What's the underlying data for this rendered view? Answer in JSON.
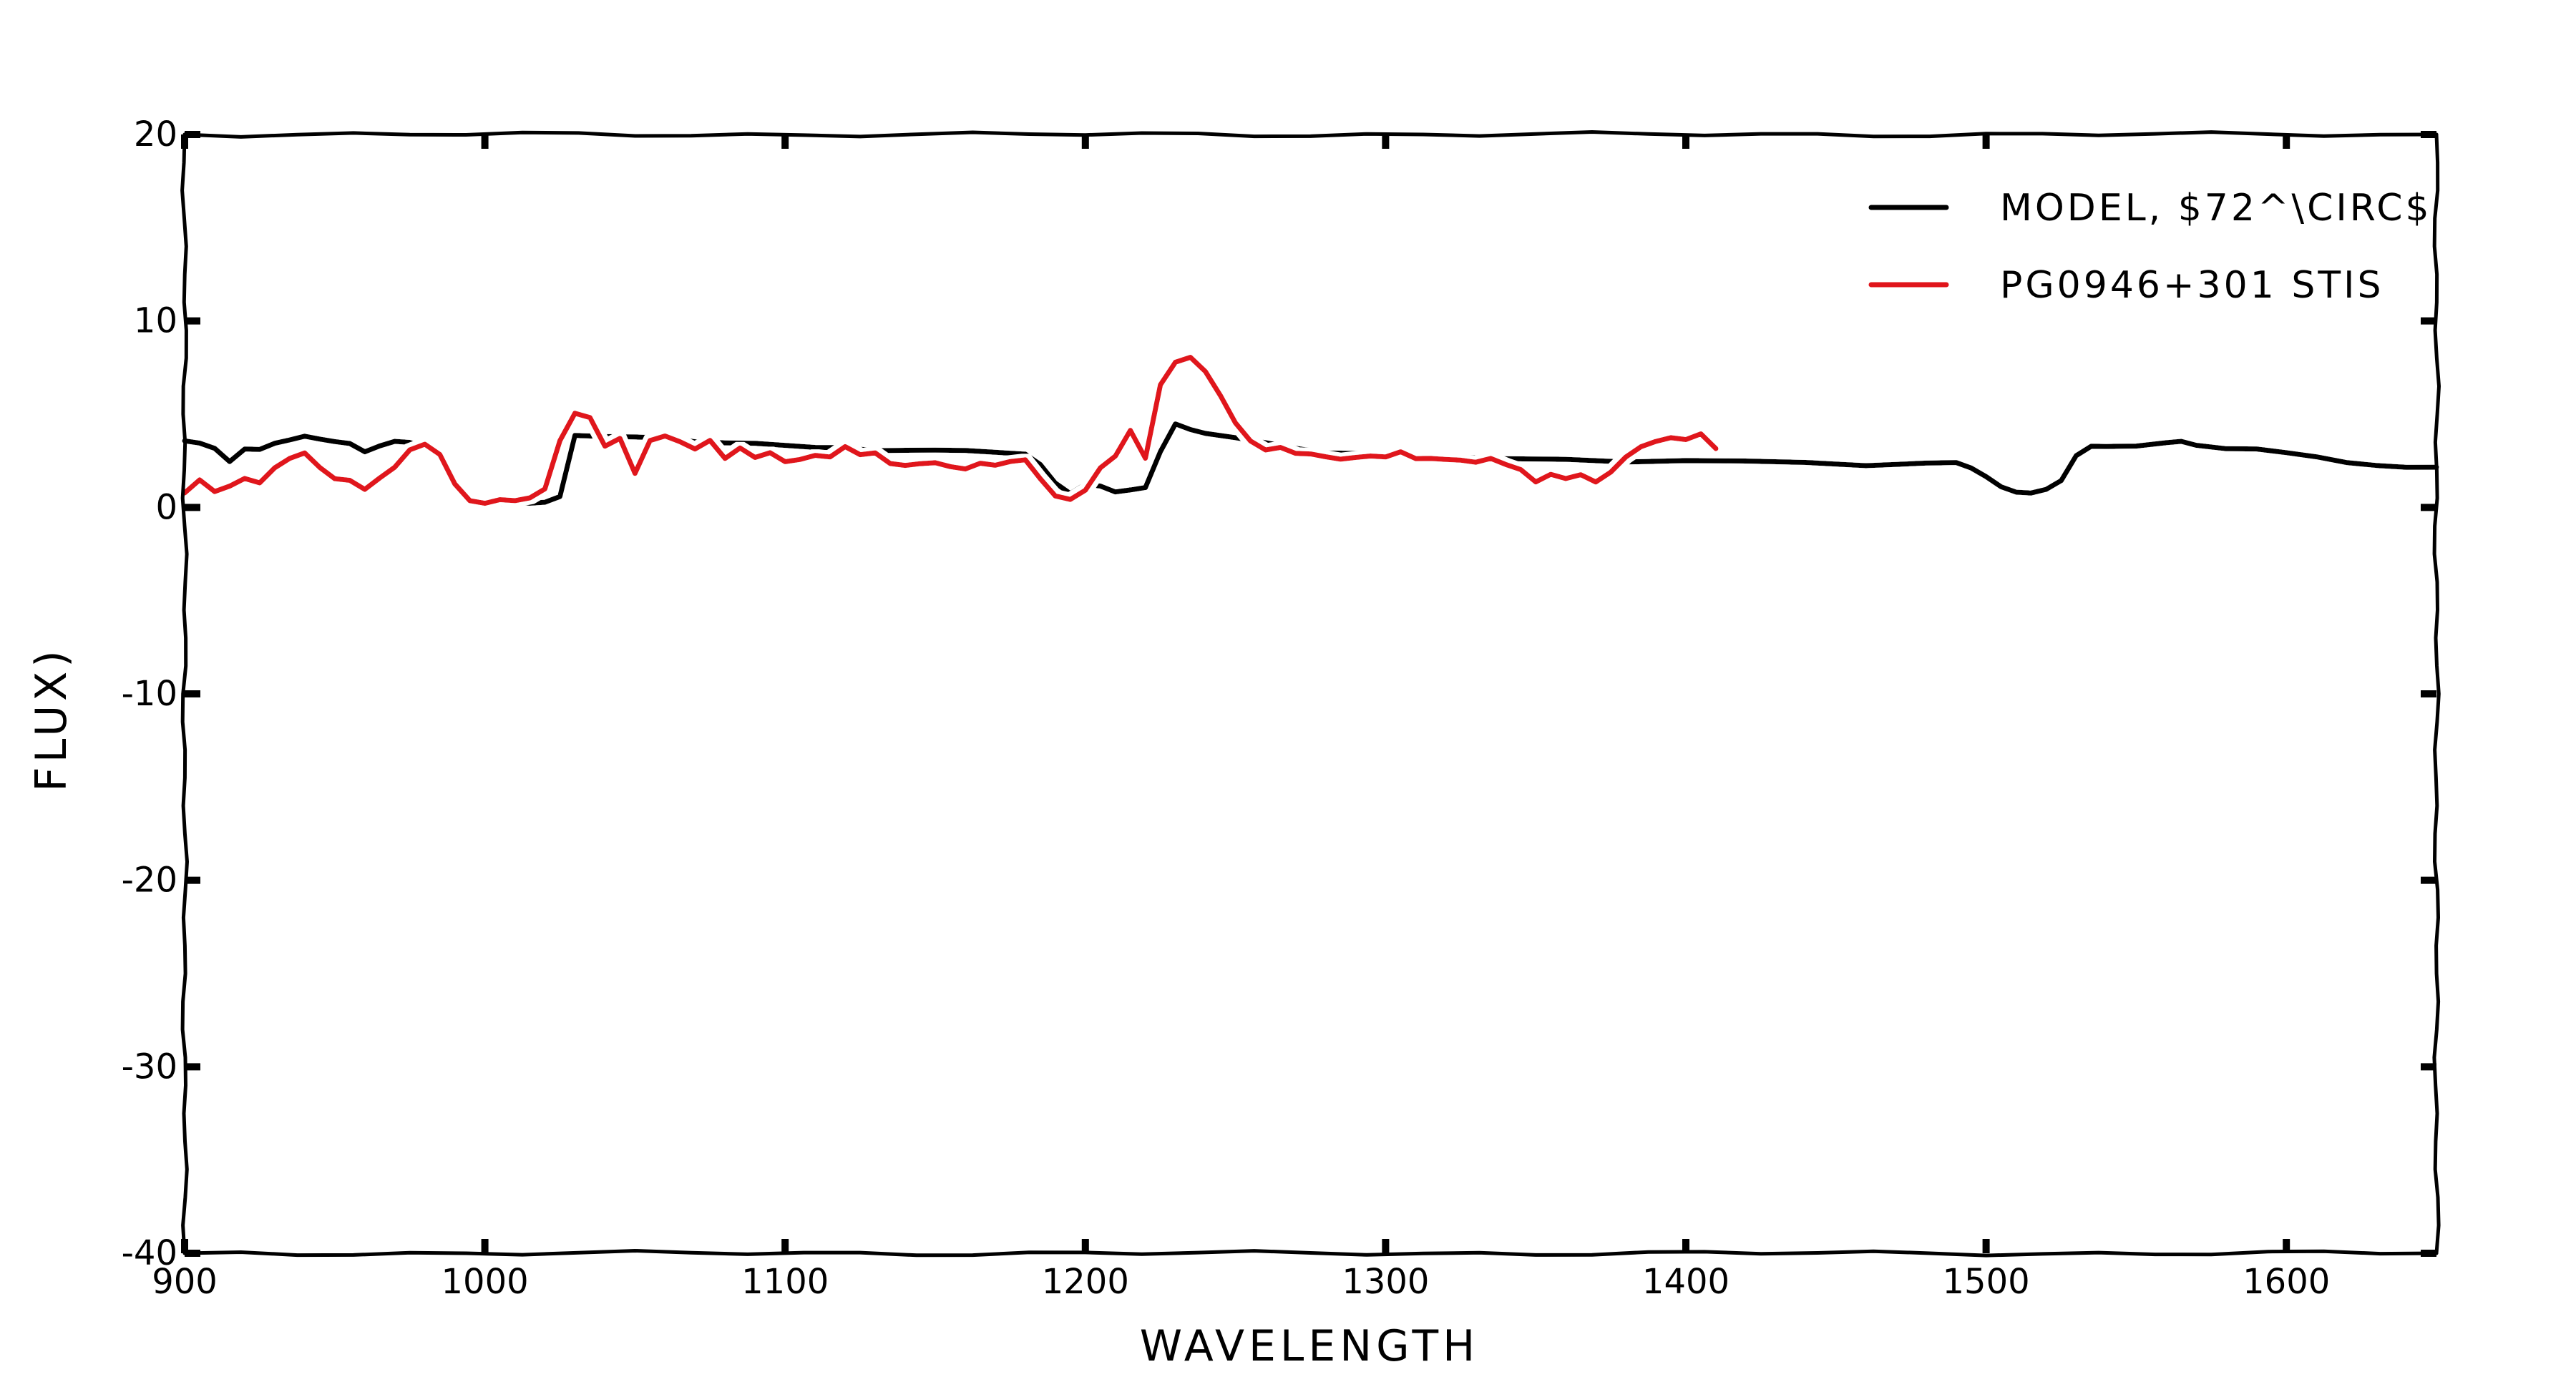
{
  "chart_data": {
    "type": "line",
    "title": "",
    "xlabel": "WAVELENGTH",
    "ylabel": "FLUX)",
    "xlim": [
      900,
      1650
    ],
    "ylim": [
      -40,
      20
    ],
    "xticks": [
      900,
      1000,
      1100,
      1200,
      1300,
      1400,
      1500,
      1600
    ],
    "xtick_labels": [
      "900",
      "1000",
      "1100",
      "1200",
      "1300",
      "1400",
      "1500",
      "1600"
    ],
    "yticks": [
      -40,
      -30,
      -20,
      -10,
      0,
      10,
      20
    ],
    "ytick_labels": [
      "-40",
      "-30",
      "-20",
      "-10",
      "0",
      "10",
      "20"
    ],
    "grid": false,
    "legend_position": "top-right",
    "style": "xkcd",
    "series": [
      {
        "name": "MODEL, $72^\\CIRC$",
        "color": "#000000",
        "x": [
          900,
          905,
          910,
          915,
          920,
          925,
          930,
          935,
          940,
          945,
          950,
          955,
          960,
          965,
          970,
          975,
          980,
          985,
          990,
          995,
          1000,
          1005,
          1010,
          1015,
          1020,
          1025,
          1030,
          1040,
          1050,
          1060,
          1070,
          1080,
          1090,
          1100,
          1110,
          1120,
          1130,
          1140,
          1150,
          1160,
          1170,
          1180,
          1185,
          1190,
          1195,
          1200,
          1205,
          1210,
          1215,
          1220,
          1225,
          1230,
          1235,
          1240,
          1250,
          1260,
          1270,
          1280,
          1290,
          1300,
          1320,
          1340,
          1360,
          1380,
          1400,
          1420,
          1440,
          1460,
          1480,
          1490,
          1495,
          1500,
          1505,
          1510,
          1515,
          1520,
          1525,
          1530,
          1535,
          1540,
          1550,
          1560,
          1565,
          1570,
          1580,
          1590,
          1600,
          1610,
          1620,
          1630,
          1640,
          1650
        ],
        "y": [
          3.6,
          3.4,
          3.1,
          2.5,
          3.2,
          3.1,
          3.4,
          3.6,
          3.8,
          3.7,
          3.6,
          3.4,
          2.9,
          3.3,
          3.6,
          3.5,
          3.2,
          2.5,
          1.3,
          0.4,
          0.2,
          0.2,
          0.2,
          0.2,
          0.3,
          0.6,
          3.9,
          3.8,
          3.7,
          3.7,
          3.6,
          3.5,
          3.4,
          3.3,
          3.2,
          3.2,
          3.1,
          3.1,
          3.0,
          3.0,
          3.0,
          2.9,
          2.3,
          1.3,
          0.7,
          1.2,
          1.2,
          0.9,
          0.9,
          1.0,
          3.0,
          4.5,
          4.2,
          4.0,
          3.7,
          3.4,
          3.2,
          3.0,
          2.9,
          2.8,
          2.7,
          2.6,
          2.6,
          2.5,
          2.5,
          2.4,
          2.4,
          2.3,
          2.4,
          2.4,
          2.1,
          1.6,
          1.1,
          0.9,
          0.8,
          0.9,
          1.4,
          2.8,
          3.3,
          3.3,
          3.3,
          3.4,
          3.5,
          3.4,
          3.2,
          3.1,
          2.9,
          2.7,
          2.4,
          2.3,
          2.2,
          2.1
        ]
      },
      {
        "name": "PG0946+301 STIS",
        "color": "#e0151b",
        "x": [
          900,
          905,
          910,
          915,
          920,
          925,
          930,
          935,
          940,
          945,
          950,
          955,
          960,
          965,
          970,
          975,
          980,
          985,
          990,
          995,
          1000,
          1005,
          1010,
          1015,
          1020,
          1025,
          1030,
          1035,
          1040,
          1045,
          1050,
          1055,
          1060,
          1065,
          1070,
          1075,
          1080,
          1085,
          1090,
          1095,
          1100,
          1105,
          1110,
          1115,
          1120,
          1125,
          1130,
          1135,
          1140,
          1145,
          1150,
          1155,
          1160,
          1165,
          1170,
          1175,
          1180,
          1185,
          1190,
          1195,
          1200,
          1205,
          1210,
          1215,
          1220,
          1225,
          1230,
          1235,
          1240,
          1245,
          1250,
          1255,
          1260,
          1265,
          1270,
          1275,
          1280,
          1285,
          1290,
          1295,
          1300,
          1305,
          1310,
          1315,
          1320,
          1325,
          1330,
          1335,
          1340,
          1345,
          1350,
          1355,
          1360,
          1365,
          1370,
          1375,
          1380,
          1385,
          1390,
          1395,
          1400,
          1405,
          1410
        ],
        "y": [
          0.8,
          1.4,
          0.8,
          1.2,
          1.6,
          1.3,
          2.1,
          2.6,
          2.9,
          2.2,
          1.6,
          1.4,
          0.9,
          1.6,
          2.2,
          3.1,
          3.4,
          2.8,
          1.2,
          0.4,
          0.3,
          0.4,
          0.3,
          0.5,
          1.0,
          3.6,
          5.1,
          4.8,
          3.2,
          3.7,
          1.9,
          3.6,
          3.8,
          3.5,
          3.1,
          3.6,
          2.7,
          3.2,
          2.6,
          2.9,
          2.5,
          2.6,
          2.8,
          2.7,
          3.2,
          2.8,
          3.0,
          2.4,
          2.2,
          2.3,
          2.4,
          2.2,
          2.1,
          2.4,
          2.2,
          2.4,
          2.6,
          1.6,
          0.6,
          0.4,
          0.9,
          2.1,
          2.8,
          4.2,
          2.6,
          6.5,
          7.8,
          8.1,
          7.3,
          6.0,
          4.5,
          3.5,
          3.1,
          3.3,
          2.9,
          2.8,
          2.7,
          2.6,
          2.7,
          2.8,
          2.7,
          2.9,
          2.6,
          2.7,
          2.6,
          2.5,
          2.4,
          2.6,
          2.3,
          2.1,
          1.4,
          1.7,
          1.5,
          1.8,
          1.4,
          1.9,
          2.7,
          3.2,
          3.5,
          3.8,
          3.7,
          3.9,
          3.1
        ]
      }
    ]
  }
}
